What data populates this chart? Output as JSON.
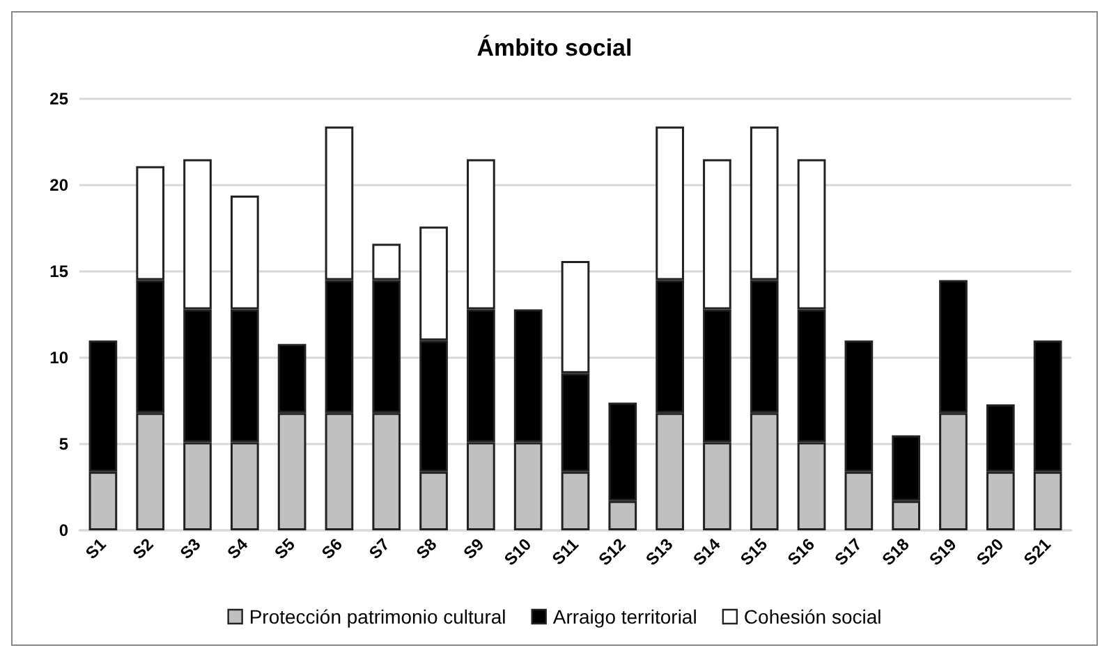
{
  "chart_data": {
    "type": "bar",
    "title": "Ámbito social",
    "stacked": true,
    "categories": [
      "S1",
      "S2",
      "S3",
      "S4",
      "S5",
      "S6",
      "S7",
      "S8",
      "S9",
      "S10",
      "S11",
      "S12",
      "S13",
      "S14",
      "S15",
      "S16",
      "S17",
      "S18",
      "S19",
      "S20",
      "S21"
    ],
    "series": [
      {
        "name": "Protección patrimonio cultural",
        "color": "#c0c0c0",
        "values": [
          3.4,
          6.8,
          5.1,
          5.1,
          6.8,
          6.8,
          6.8,
          3.4,
          5.1,
          5.1,
          3.4,
          1.7,
          6.8,
          5.1,
          6.8,
          5.1,
          3.4,
          1.7,
          6.8,
          3.4,
          3.4
        ]
      },
      {
        "name": "Arraigo territorial",
        "color": "#000000",
        "values": [
          7.6,
          7.7,
          7.7,
          7.7,
          4.0,
          7.7,
          7.7,
          7.6,
          7.7,
          7.7,
          5.7,
          5.7,
          7.7,
          7.7,
          7.7,
          7.7,
          7.6,
          3.8,
          7.7,
          3.9,
          7.6
        ]
      },
      {
        "name": "Cohesión social",
        "color": "#ffffff",
        "values": [
          null,
          6.6,
          8.7,
          6.6,
          null,
          8.9,
          2.1,
          6.6,
          8.7,
          null,
          6.5,
          null,
          8.9,
          8.7,
          8.9,
          8.7,
          null,
          null,
          null,
          null,
          null
        ]
      }
    ],
    "ylim": [
      0,
      25
    ],
    "yticks": [
      0,
      5,
      10,
      15,
      20,
      25
    ],
    "grid": "y",
    "legend": "bottom"
  }
}
